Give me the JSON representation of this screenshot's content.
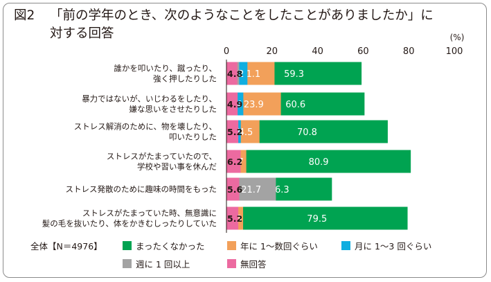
{
  "title": {
    "figure": "図2",
    "line1": "「前の学年のとき、次のようなことをしたことがありましたか」に",
    "line2": "対する回答"
  },
  "legend": {
    "total": "全体【N＝4976】"
  },
  "chart_data": {
    "type": "bar",
    "orientation": "horizontal",
    "stacked": true,
    "unit": "(%)",
    "xlim": [
      0,
      100
    ],
    "xticks": [
      "0",
      "20",
      "40",
      "60",
      "80",
      "100"
    ],
    "colors": [
      "#00a351",
      "#f2a05a",
      "#10aee0",
      "#a3a3a3",
      "#ec6aa0"
    ],
    "categories": [
      [
        "誰かを叩いたり、蹴ったり、",
        "強く押したりした"
      ],
      [
        "暴力ではないが、いじわるをしたり、",
        "嫌な思いをさせたりした"
      ],
      [
        "ストレス解消のために、物を壊したり、",
        "叩いたりした"
      ],
      [
        "ストレスがたまっていたので、",
        "学校や習い事を休んだ"
      ],
      [
        "ストレス発散のために趣味の時間をもった"
      ],
      [
        "ストレスがたまっていた時、無意識に",
        "髪の毛を抜いたり、体をかきむしったりしていた"
      ]
    ],
    "series": [
      {
        "name": "まったくなかった",
        "values": [
          59.3,
          60.6,
          70.8,
          80.9,
          46.3,
          79.5
        ]
      },
      {
        "name": "年に 1～数回ぐらい",
        "values": [
          21.1,
          23.9,
          14.5,
          8.7,
          12.3,
          7.3
        ]
      },
      {
        "name": "月に 1～3 回ぐらい",
        "values": [
          9.2,
          7.4,
          6.3,
          2.8,
          14.1,
          4.0
        ]
      },
      {
        "name": "週に 1 回以上",
        "values": [
          5.6,
          3.2,
          3.3,
          1.4,
          21.7,
          4.0
        ]
      },
      {
        "name": "無回答",
        "values": [
          4.8,
          4.9,
          5.2,
          6.2,
          5.6,
          5.2
        ]
      }
    ]
  }
}
